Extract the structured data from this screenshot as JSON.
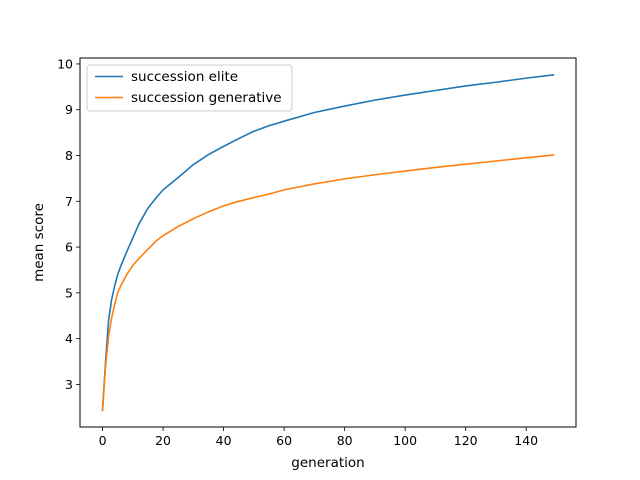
{
  "chart_data": {
    "type": "line",
    "title": "",
    "xlabel": "generation",
    "ylabel": "mean score",
    "xlim": [
      -7.45,
      156.45
    ],
    "ylim": [
      2.07,
      10.13
    ],
    "xticks": [
      0,
      20,
      40,
      60,
      80,
      100,
      120,
      140
    ],
    "yticks": [
      3,
      4,
      5,
      6,
      7,
      8,
      9,
      10
    ],
    "grid": false,
    "legend_position": "upper-left",
    "series": [
      {
        "name": "succession elite",
        "color": "#1f77b4",
        "x": [
          0,
          1,
          2,
          3,
          4,
          5,
          6,
          8,
          10,
          12,
          15,
          18,
          20,
          25,
          30,
          35,
          40,
          45,
          50,
          55,
          60,
          70,
          80,
          90,
          100,
          110,
          120,
          130,
          140,
          149
        ],
        "y": [
          2.45,
          3.5,
          4.4,
          4.85,
          5.15,
          5.4,
          5.58,
          5.9,
          6.2,
          6.5,
          6.85,
          7.1,
          7.25,
          7.52,
          7.8,
          8.02,
          8.2,
          8.37,
          8.53,
          8.65,
          8.75,
          8.94,
          9.08,
          9.21,
          9.32,
          9.42,
          9.52,
          9.6,
          9.69,
          9.76
        ]
      },
      {
        "name": "succession generative",
        "color": "#ff7f0e",
        "x": [
          0,
          1,
          2,
          3,
          4,
          5,
          6,
          8,
          10,
          12,
          15,
          18,
          20,
          25,
          30,
          35,
          40,
          45,
          50,
          55,
          60,
          70,
          80,
          90,
          100,
          110,
          120,
          130,
          140,
          149
        ],
        "y": [
          2.43,
          3.4,
          4.05,
          4.45,
          4.75,
          5.0,
          5.15,
          5.4,
          5.6,
          5.75,
          5.95,
          6.15,
          6.25,
          6.45,
          6.62,
          6.77,
          6.9,
          7.0,
          7.08,
          7.16,
          7.25,
          7.38,
          7.49,
          7.58,
          7.66,
          7.74,
          7.81,
          7.88,
          7.95,
          8.01
        ]
      }
    ]
  }
}
